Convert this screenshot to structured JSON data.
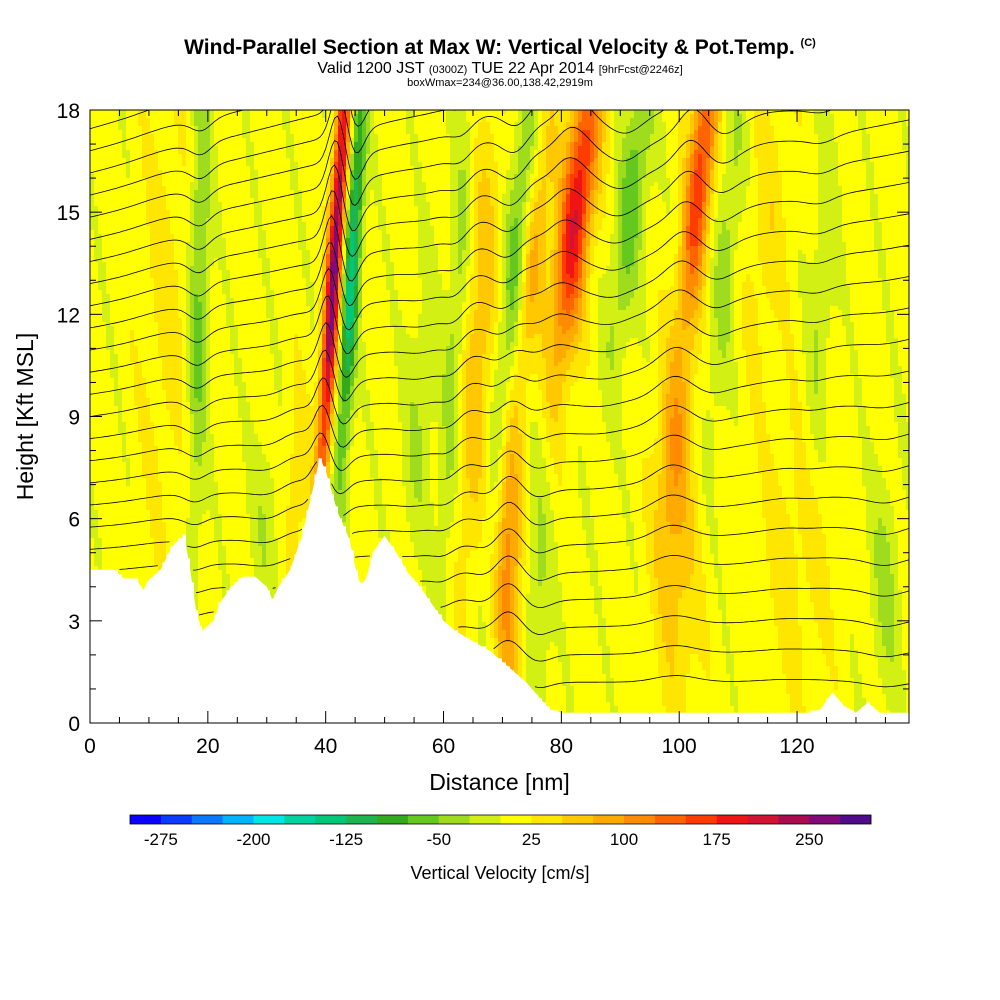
{
  "title": "Wind-Parallel Section at Max W: Vertical Velocity & Pot.Temp.",
  "title_mark": "(C)",
  "subtitle": {
    "a": "Valid 1200 JST",
    "b": "(0300Z)",
    "c": "TUE 22 Apr 2014",
    "d": "[9hrFcst@2246z]"
  },
  "boxline": "boxWmax=234@36.00,138.42,2919m",
  "colorbar": {
    "label": "Vertical Velocity [cm/s]",
    "tick_labels": [
      "-275",
      "-200",
      "-125",
      "-50",
      "25",
      "100",
      "175",
      "250"
    ],
    "colors": [
      "#0a00ff",
      "#0a3cff",
      "#0a78ff",
      "#00b4ff",
      "#00e6e6",
      "#00d2a0",
      "#00c878",
      "#1eb450",
      "#32aa1e",
      "#64c81e",
      "#a0dc1e",
      "#d2f014",
      "#ffff00",
      "#ffe600",
      "#ffc800",
      "#ffaa00",
      "#ff8c00",
      "#ff6400",
      "#ff3c00",
      "#f01414",
      "#d21432",
      "#aa0a50",
      "#820a78",
      "#500a8c"
    ]
  },
  "chart_data": {
    "type": "heatmap",
    "xlabel": "Distance [nm]",
    "ylabel": "Height [Kft MSL]",
    "xlim": [
      0,
      139
    ],
    "ylim": [
      0,
      18
    ],
    "x_ticks": [
      0,
      20,
      40,
      60,
      80,
      100,
      120
    ],
    "y_ticks": [
      0,
      3,
      6,
      9,
      12,
      15,
      18
    ],
    "x_tick_labels": [
      "0",
      "20",
      "40",
      "60",
      "80",
      "100",
      "120"
    ],
    "y_tick_labels": [
      "0",
      "3",
      "6",
      "9",
      "12",
      "15",
      "18"
    ],
    "contour_field": "potential temperature",
    "terrain_kft": [
      [
        0,
        4.5
      ],
      [
        4,
        4.5
      ],
      [
        6,
        4.2
      ],
      [
        8,
        4.2
      ],
      [
        9,
        3.9
      ],
      [
        10,
        4.2
      ],
      [
        12,
        4.5
      ],
      [
        14,
        5.2
      ],
      [
        16,
        5.5
      ],
      [
        17,
        4.5
      ],
      [
        18,
        3.3
      ],
      [
        19,
        2.7
      ],
      [
        21,
        3.0
      ],
      [
        22,
        3.5
      ],
      [
        24,
        4.0
      ],
      [
        26,
        4.3
      ],
      [
        28,
        4.3
      ],
      [
        30,
        4.0
      ],
      [
        31,
        3.6
      ],
      [
        32,
        4.0
      ],
      [
        34,
        4.5
      ],
      [
        36,
        5.5
      ],
      [
        38,
        7.0
      ],
      [
        39,
        7.8
      ],
      [
        40,
        7.4
      ],
      [
        41,
        6.8
      ],
      [
        42,
        6.2
      ],
      [
        43,
        5.8
      ],
      [
        44,
        5.4
      ],
      [
        45,
        4.6
      ],
      [
        46,
        4.0
      ],
      [
        47,
        4.3
      ],
      [
        48,
        5.0
      ],
      [
        50,
        5.5
      ],
      [
        52,
        5.0
      ],
      [
        54,
        4.4
      ],
      [
        56,
        4.0
      ],
      [
        58,
        3.5
      ],
      [
        60,
        3.0
      ],
      [
        62,
        2.7
      ],
      [
        64,
        2.5
      ],
      [
        66,
        2.3
      ],
      [
        68,
        2.1
      ],
      [
        70,
        1.8
      ],
      [
        72,
        1.5
      ],
      [
        74,
        1.2
      ],
      [
        76,
        0.8
      ],
      [
        78,
        0.4
      ],
      [
        80,
        0.3
      ],
      [
        90,
        0.3
      ],
      [
        100,
        0.3
      ],
      [
        110,
        0.3
      ],
      [
        122,
        0.3
      ],
      [
        124,
        0.4
      ],
      [
        126,
        0.9
      ],
      [
        128,
        0.5
      ],
      [
        130,
        0.3
      ],
      [
        132,
        0.6
      ],
      [
        134,
        0.3
      ],
      [
        139,
        0.3
      ]
    ],
    "features_cm_s": [
      {
        "x": 41.5,
        "z": 13.5,
        "w": 260,
        "sx": 0.9,
        "sz": 5.0,
        "tilt": 0.35
      },
      {
        "x": 44.5,
        "z": 13.5,
        "w": -150,
        "sx": 1.0,
        "sz": 4.5,
        "tilt": 0.3
      },
      {
        "x": 18.5,
        "z": 13.0,
        "w": -70,
        "sx": 1.2,
        "sz": 5.5,
        "tilt": 0.1
      },
      {
        "x": 13.0,
        "z": 12.0,
        "w": 25,
        "sx": 3.0,
        "sz": 5.0,
        "tilt": 0.0
      },
      {
        "x": 82.5,
        "z": 15.0,
        "w": 190,
        "sx": 2.0,
        "sz": 3.2,
        "tilt": 0.6
      },
      {
        "x": 75.0,
        "z": 13.5,
        "w": 75,
        "sx": 1.6,
        "sz": 3.5,
        "tilt": 0.6
      },
      {
        "x": 72.0,
        "z": 13.0,
        "w": -80,
        "sx": 1.6,
        "sz": 5.0,
        "tilt": 0.5
      },
      {
        "x": 62.0,
        "z": 11.0,
        "w": -50,
        "sx": 1.2,
        "sz": 5.5,
        "tilt": 0.3
      },
      {
        "x": 66.0,
        "z": 11.0,
        "w": 60,
        "sx": 2.0,
        "sz": 5.0,
        "tilt": 0.3
      },
      {
        "x": 71.0,
        "z": 4.5,
        "w": 110,
        "sx": 1.5,
        "sz": 3.0,
        "tilt": 0.0
      },
      {
        "x": 76.0,
        "z": 4.0,
        "w": -45,
        "sx": 1.5,
        "sz": 3.0,
        "tilt": 0.0
      },
      {
        "x": 92.0,
        "z": 15.5,
        "w": -75,
        "sx": 1.8,
        "sz": 3.5,
        "tilt": 0.6
      },
      {
        "x": 103.5,
        "z": 16.0,
        "w": 160,
        "sx": 1.6,
        "sz": 3.0,
        "tilt": 0.5
      },
      {
        "x": 99.0,
        "z": 8.0,
        "w": 70,
        "sx": 2.0,
        "sz": 2.5,
        "tilt": 0.3
      },
      {
        "x": 100.0,
        "z": 4.0,
        "w": 45,
        "sx": 2.5,
        "sz": 3.0,
        "tilt": 0.0
      },
      {
        "x": 108.0,
        "z": 14.0,
        "w": -45,
        "sx": 1.6,
        "sz": 4.0,
        "tilt": 0.4
      },
      {
        "x": 115.0,
        "z": 14.5,
        "w": 30,
        "sx": 2.5,
        "sz": 3.0,
        "tilt": 0.3
      },
      {
        "x": 124.0,
        "z": 12.0,
        "w": -35,
        "sx": 1.6,
        "sz": 4.0,
        "tilt": 0.3
      },
      {
        "x": 56.0,
        "z": 9.0,
        "w": -35,
        "sx": 2.0,
        "sz": 3.0,
        "tilt": 0.3
      },
      {
        "x": 30.0,
        "z": 6.0,
        "w": -30,
        "sx": 2.0,
        "sz": 2.0,
        "tilt": 0.0
      },
      {
        "x": 35.0,
        "z": 7.0,
        "w": 35,
        "sx": 1.6,
        "sz": 2.0,
        "tilt": 0.0
      },
      {
        "x": 120.0,
        "z": 5.0,
        "w": 30,
        "sx": 4.0,
        "sz": 3.0,
        "tilt": 0.0
      },
      {
        "x": 135.0,
        "z": 4.0,
        "w": -40,
        "sx": 2.0,
        "sz": 2.5,
        "tilt": 0.0
      }
    ]
  }
}
